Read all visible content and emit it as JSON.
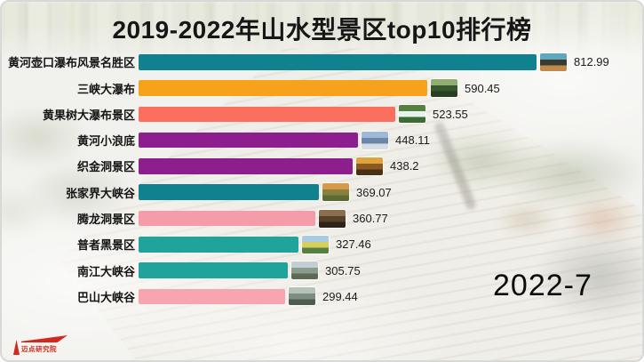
{
  "header": {
    "title": "2019-2022年山水型景区top10排行榜"
  },
  "chart_data": {
    "type": "bar",
    "orientation": "horizontal",
    "title": "2019-2022年山水型景区top10排行榜",
    "period_label": "2022-7",
    "xlim": [
      0,
      812.99
    ],
    "legend": "none",
    "grid": false,
    "categories": [
      "黄河壶口瀑布风景名胜区",
      "三峡大瀑布",
      "黄果树大瀑布景区",
      "黄河小浪底",
      "织金洞景区",
      "张家界大峡谷",
      "腾龙洞景区",
      "普者黑景区",
      "南江大峡谷",
      "巴山大峡谷"
    ],
    "values": [
      812.99,
      590.45,
      523.55,
      448.11,
      438.2,
      369.07,
      360.77,
      327.46,
      305.75,
      299.44
    ],
    "bar_colors": [
      "#10818e",
      "#f7a21b",
      "#fa6f5e",
      "#8c1e8e",
      "#8c1e8e",
      "#10818e",
      "#f59cab",
      "#20a39a",
      "#20a39a",
      "#f7a6b0"
    ],
    "thumb_colors": [
      [
        "#5fa8bc",
        "#3a3a33",
        "#c08a4c"
      ],
      [
        "#8fae6f",
        "#39582f",
        "#274020"
      ],
      [
        "#55803f",
        "#e8f2ef",
        "#3c6b33"
      ],
      [
        "#9db9d6",
        "#6b86a8",
        "#d8dde2"
      ],
      [
        "#e0a43c",
        "#8a5a22",
        "#4a3012"
      ],
      [
        "#d79a4a",
        "#88803f",
        "#5d6b33"
      ],
      [
        "#8a6f4d",
        "#55402a",
        "#2e2318"
      ],
      [
        "#a9cbe3",
        "#d6cf5e",
        "#55803f"
      ],
      [
        "#c2cdd4",
        "#8c9c8c",
        "#5d6b55"
      ],
      [
        "#b5c2b8",
        "#7d8d7f",
        "#4e5c50"
      ]
    ]
  },
  "footer": {
    "watermark": "迈点研究院"
  }
}
